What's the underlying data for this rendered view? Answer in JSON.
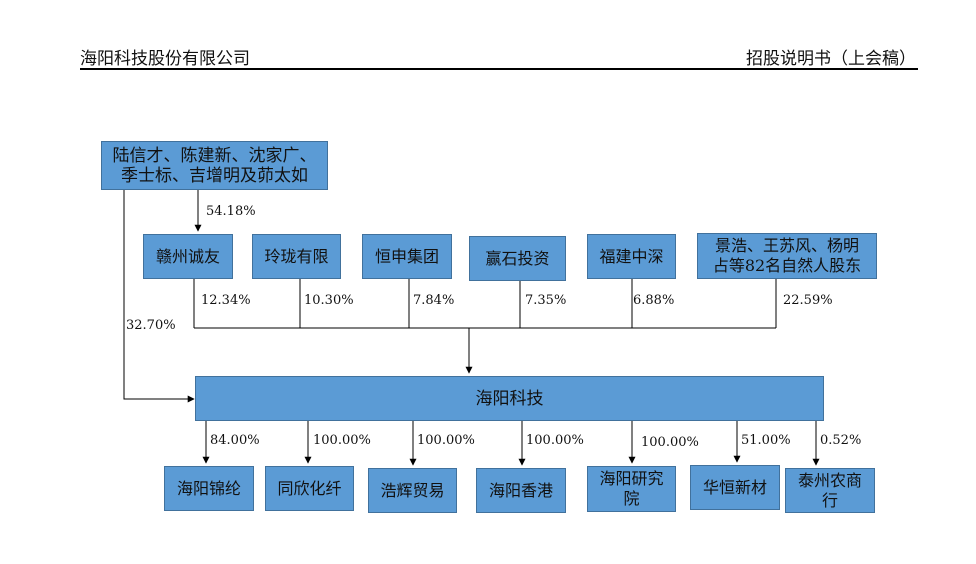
{
  "header": {
    "company": "海阳科技股份有限公司",
    "doc_title": "招股说明书（上会稿）"
  },
  "diagram": {
    "controllers": "陆信才、陈建新、沈家广、季士标、吉增明及茆太如",
    "controllers_line1": "陆信才、陈建新、沈家广、",
    "controllers_line2": "季士标、吉增明及茆太如",
    "company": "海阳科技",
    "controller_to_ganzhou_pct": "54.18%",
    "controller_direct_pct": "32.70%",
    "shareholders": [
      {
        "name": "赣州诚友",
        "pct": "12.34%"
      },
      {
        "name": "玲珑有限",
        "pct": "10.30%"
      },
      {
        "name": "恒申集团",
        "pct": "7.84%"
      },
      {
        "name": "赢石投资",
        "pct": "7.35%"
      },
      {
        "name": "福建中深",
        "pct": "6.88%"
      },
      {
        "name": "景浩、王苏风、杨明占等82名自然人股东",
        "line1": "景浩、王苏风、杨明",
        "line2": "占等82名自然人股东",
        "pct": "22.59%"
      }
    ],
    "subsidiaries": [
      {
        "name": "海阳锦纶",
        "pct": "84.00%"
      },
      {
        "name": "同欣化纤",
        "pct": "100.00%"
      },
      {
        "name": "浩辉贸易",
        "pct": "100.00%"
      },
      {
        "name": "海阳香港",
        "pct": "100.00%"
      },
      {
        "name": "海阳研究院",
        "line1": "海阳研究",
        "line2": "院",
        "pct": "100.00%"
      },
      {
        "name": "华恒新材",
        "pct": "51.00%"
      },
      {
        "name": "泰州农商行",
        "line1": "泰州农商",
        "line2": "行",
        "pct": "0.52%"
      }
    ]
  }
}
